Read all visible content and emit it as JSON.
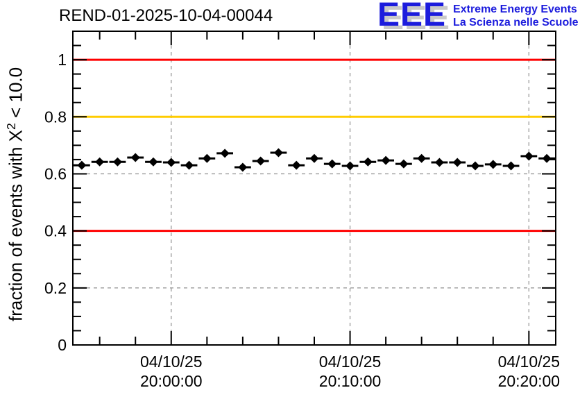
{
  "header": {
    "title": "REND-01-2025-10-04-00044",
    "logo": {
      "acronym": "EEE",
      "line1": "Extreme Energy Events",
      "line2": "La Scienza nelle Scuole",
      "blue": "#1c1cdd",
      "shadow_gray": "#c9c9c9"
    }
  },
  "chart_data": {
    "type": "scatter",
    "title": "REND-01-2025-10-04-00044",
    "ylabel_prefix": "fraction of events with X",
    "ylabel_sup": "2",
    "ylabel_suffix": " < 10.0",
    "xlabel": "",
    "ylim": [
      0,
      1.1
    ],
    "yticks": [
      0,
      0.2,
      0.4,
      0.6,
      0.8,
      1
    ],
    "ytick_labels": [
      "0",
      "0.2",
      "0.4",
      "0.6",
      "0.8",
      "1"
    ],
    "y_minor_step": 0.05,
    "xlim_minutes_rel_2000": [
      -5.5,
      21.5
    ],
    "xticks": [
      {
        "minutes": 0,
        "date": "04/10/25",
        "time": "20:00:00"
      },
      {
        "minutes": 10,
        "date": "04/10/25",
        "time": "20:10:00"
      },
      {
        "minutes": 20,
        "date": "04/10/25",
        "time": "20:20:00"
      }
    ],
    "x_minor_step_minutes": 2,
    "grid": "dashed",
    "grid_color": "#999999",
    "reference_lines": [
      {
        "y": 1.0,
        "color": "#ff0000"
      },
      {
        "y": 0.8,
        "color": "#ffcc00"
      },
      {
        "y": 0.4,
        "color": "#ff0000"
      }
    ],
    "series": [
      {
        "name": "fraction of events with chi2 < 10",
        "marker": "diamond",
        "color": "#000000",
        "xerr_minutes": 0.5,
        "yerr": 0.008,
        "x_minutes": [
          -5,
          -4,
          -3,
          -2,
          -1,
          0,
          1,
          2,
          3,
          4,
          5,
          6,
          7,
          8,
          9,
          10,
          11,
          12,
          13,
          14,
          15,
          16,
          17,
          18,
          19,
          20,
          21
        ],
        "values": [
          0.63,
          0.642,
          0.642,
          0.657,
          0.642,
          0.64,
          0.63,
          0.654,
          0.672,
          0.623,
          0.645,
          0.674,
          0.63,
          0.654,
          0.635,
          0.628,
          0.642,
          0.647,
          0.635,
          0.654,
          0.64,
          0.64,
          0.628,
          0.633,
          0.628,
          0.662,
          0.654
        ]
      }
    ]
  }
}
